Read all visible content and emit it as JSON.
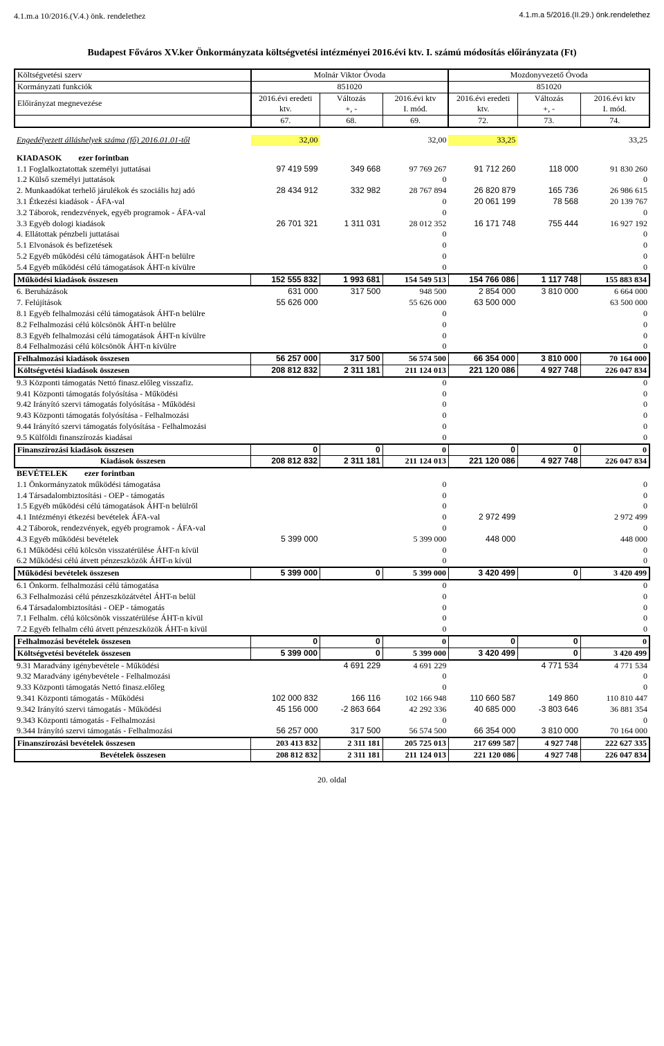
{
  "top_left_ref": "4.1.m.a 10/2016.(V.4.) önk. rendelethez",
  "top_right_ref": "4.1.m.a 5/2016.(II.29.) önk.rendelethez",
  "page_title": "Budapest Főváros XV.ker Önkormányzata költségvetési intézményei  2016.évi ktv. I. számú módosítás előirányzata (Ft)",
  "footer": "20. oldal",
  "header_block": {
    "koltsegvetesi": "Költségvetési szerv",
    "szerv1": "Molnár Viktor Óvoda",
    "szerv2": "Mozdonyvezető Óvoda",
    "korm_funk": "Kormányzati funkciók",
    "eloir_megnev": "Előirányzat megnevezése",
    "code1": "851020",
    "code2": "851020",
    "col_hdrs_left": [
      "2016.évi eredeti ktv.",
      "Változás +, -",
      "2016.évi ktv I. mód."
    ],
    "col_hdrs_right": [
      "2016.évi eredeti ktv.",
      "Változás +, -",
      "2016.évi ktv I. mód."
    ],
    "nums": [
      "67.",
      "68.",
      "69.",
      "72.",
      "73.",
      "74."
    ]
  },
  "allashelyek": {
    "label": "Engedélyezett álláshelyek száma (fő)  2016.01.01-től",
    "v": [
      "32,00",
      "",
      "32,00",
      "33,25",
      "",
      "33,25"
    ]
  },
  "kiadasok_hdr": "KIADASOK",
  "ezer_forint": "ezer forintban",
  "bevetelek_hdr": "BEVÉTELEK",
  "rows_kiadasok": [
    {
      "label": "1.1 Foglalkoztatottak személyi juttatásai",
      "v": [
        "97 419 599",
        "349 668",
        "97 769 267",
        "91 712 260",
        "118 000",
        "91 830 260"
      ],
      "sans_cols": [
        0,
        1,
        3,
        4
      ]
    },
    {
      "label": "1.2 Külső személyi juttatások",
      "v": [
        "",
        "",
        "0",
        "",
        "",
        "0"
      ]
    },
    {
      "label": "2. Munkaadókat terhelő járulékok és szociális hzj adó",
      "v": [
        "28 434 912",
        "332 982",
        "28 767 894",
        "26 820 879",
        "165 736",
        "26 986 615"
      ],
      "sans_cols": [
        0,
        1,
        3,
        4
      ]
    },
    {
      "label": "3.1 Étkezési kiadások - ÁFA-val",
      "v": [
        "",
        "",
        "0",
        "20 061 199",
        "78 568",
        "20 139 767"
      ],
      "sans_cols": [
        3,
        4
      ]
    },
    {
      "label": "3.2 Táborok, rendezvények, egyéb programok - ÁFA-val",
      "v": [
        "",
        "",
        "0",
        "",
        "",
        "0"
      ]
    },
    {
      "label": "3.3 Egyéb dologi kiadások",
      "v": [
        "26 701 321",
        "1 311 031",
        "28 012 352",
        "16 171 748",
        "755 444",
        "16 927 192"
      ],
      "sans_cols": [
        0,
        1,
        3,
        4
      ]
    },
    {
      "label": " 4. Ellátottak pénzbeli juttatásai",
      "v": [
        "",
        "",
        "0",
        "",
        "",
        "0"
      ]
    },
    {
      "label": "5.1 Elvonások és befizetések",
      "v": [
        "",
        "",
        "0",
        "",
        "",
        "0"
      ]
    },
    {
      "label": "5.2 Egyéb működési célú támogatások ÁHT-n belülre",
      "v": [
        "",
        "",
        "0",
        "",
        "",
        "0"
      ]
    },
    {
      "label": "5.4 Egyéb működési célú támogatások ÁHT-n kívülre",
      "v": [
        "",
        "",
        "0",
        "",
        "",
        "0"
      ]
    }
  ],
  "mukodesi_kiadasok": {
    "label": "Működési kiadások összesen",
    "v": [
      "152 555 832",
      "1 993 681",
      "154 549 513",
      "154 766 086",
      "1 117 748",
      "155 883 834"
    ]
  },
  "rows_beruh": [
    {
      "label": " 6. Beruházások",
      "v": [
        "631 000",
        "317 500",
        "948 500",
        "2 854 000",
        "3 810 000",
        "6 664 000"
      ],
      "sans_cols": [
        0,
        1,
        3,
        4
      ]
    },
    {
      "label": " 7. Felújítások",
      "v": [
        "55 626 000",
        "",
        "55 626 000",
        "63 500 000",
        "",
        "63 500 000"
      ],
      "sans_cols": [
        0,
        3
      ]
    },
    {
      "label": "8.1 Egyéb felhalmozási célú támogatások ÁHT-n belülre",
      "v": [
        "",
        "",
        "0",
        "",
        "",
        "0"
      ]
    },
    {
      "label": "8.2 Felhalmozási célú kölcsönök ÁHT-n belülre",
      "v": [
        "",
        "",
        "0",
        "",
        "",
        "0"
      ]
    },
    {
      "label": "8.3 Egyéb felhalmozási célú támogatások ÁHT-n kívülre",
      "v": [
        "",
        "",
        "0",
        "",
        "",
        "0"
      ]
    },
    {
      "label": "8.4 Felhalmozási célú kölcsönök ÁHT-n kívülre",
      "v": [
        "",
        "",
        "0",
        "",
        "",
        "0"
      ]
    }
  ],
  "felhalm_kiadasok": {
    "label": "Felhalmozási kiadások összesen",
    "v": [
      "56 257 000",
      "317 500",
      "56 574 500",
      "66 354 000",
      "3 810 000",
      "70 164 000"
    ]
  },
  "koltsegv_kiadasok": {
    "label": "Költségvetési kiadások összesen",
    "v": [
      "208 812 832",
      "2 311 181",
      "211 124 013",
      "221 120 086",
      "4 927 748",
      "226 047 834"
    ]
  },
  "rows_93": [
    {
      "label": "9.3  Központi támogatás Nettó finasz.előleg visszafiz.",
      "v": [
        "",
        "",
        "0",
        "",
        "",
        "0"
      ]
    },
    {
      "label": "9.41 Központi támogatás folyósítása - Működési",
      "v": [
        "",
        "",
        "0",
        "",
        "",
        "0"
      ]
    },
    {
      "label": "9.42 Irányító szervi támogatás folyósítása - Működési",
      "v": [
        "",
        "",
        "0",
        "",
        "",
        "0"
      ]
    },
    {
      "label": "9.43 Központi támogatás folyósítása - Felhalmozási",
      "v": [
        "",
        "",
        "0",
        "",
        "",
        "0"
      ]
    },
    {
      "label": "9.44 Irányító szervi támogatás folyósítása - Felhalmozási",
      "v": [
        "",
        "",
        "0",
        "",
        "",
        "0"
      ]
    },
    {
      "label": "9.5 Külföldi finanszírozás kiadásai",
      "v": [
        "",
        "",
        "0",
        "",
        "",
        "0"
      ]
    }
  ],
  "finansz_kiadasok": {
    "label": "Finanszírozási kiadások összesen",
    "v": [
      "0",
      "0",
      "0",
      "0",
      "0",
      "0"
    ]
  },
  "kiadasok_ossz": {
    "label": "Kiadások összesen",
    "v": [
      "208 812 832",
      "2 311 181",
      "211 124 013",
      "221 120 086",
      "4 927 748",
      "226 047 834"
    ]
  },
  "rows_bev": [
    {
      "label": "1.1 Önkormányzatok működési támogatása",
      "v": [
        "",
        "",
        "0",
        "",
        "",
        "0"
      ]
    },
    {
      "label": "1.4 Társadalombiztosítási - OEP - támogatás",
      "v": [
        "",
        "",
        "0",
        "",
        "",
        "0"
      ]
    },
    {
      "label": "1.5 Egyéb működési célú támogatások ÁHT-n belülről",
      "v": [
        "",
        "",
        "0",
        "",
        "",
        "0"
      ]
    },
    {
      "label": "4.1 Intézményi étkezési bevételek ÁFA-val",
      "v": [
        "",
        "",
        "0",
        "2 972 499",
        "",
        "2 972 499"
      ],
      "sans_cols": [
        3
      ]
    },
    {
      "label": "4.2 Táborok, rendezvények, egyéb programok - ÁFA-val",
      "v": [
        "",
        "",
        "0",
        "",
        "",
        "0"
      ]
    },
    {
      "label": "4.3 Egyéb működési bevételek",
      "v": [
        "5 399 000",
        "",
        "5 399 000",
        "448 000",
        "",
        "448 000"
      ],
      "sans_cols": [
        0,
        3
      ]
    },
    {
      "label": "6.1 Működési célú kölcsön visszatérülése ÁHT-n kívül",
      "v": [
        "",
        "",
        "0",
        "",
        "",
        "0"
      ]
    },
    {
      "label": "6.2 Működési célú átvett pénzeszközök  ÁHT-n kívül",
      "v": [
        "",
        "",
        "0",
        "",
        "",
        "0"
      ]
    }
  ],
  "mukodesi_bev": {
    "label": "Működési bevételek összesen",
    "v": [
      "5 399 000",
      "0",
      "5 399 000",
      "3 420 499",
      "0",
      "3 420 499"
    ]
  },
  "rows_bev2": [
    {
      "label": "6.1 Önkorm. felhalmozási célú  támogatása",
      "v": [
        "",
        "",
        "0",
        "",
        "",
        "0"
      ]
    },
    {
      "label": "6.3 Felhalmozási célú pénzeszközátvétel ÁHT-n belül",
      "v": [
        "",
        "",
        "0",
        "",
        "",
        "0"
      ]
    },
    {
      "label": "6.4 Társadalombiztosítási - OEP - támogatás",
      "v": [
        "",
        "",
        "0",
        "",
        "",
        "0"
      ]
    },
    {
      "label": "7.1 Felhalm. célú kölcsönök visszatérülése ÁHT-n kívül",
      "v": [
        "",
        "",
        "0",
        "",
        "",
        "0"
      ]
    },
    {
      "label": "7.2 Egyéb felhalm célú átvett pénzeszközök ÁHT-n kívül",
      "v": [
        "",
        "",
        "0",
        "",
        "",
        "0"
      ]
    }
  ],
  "felhalm_bev": {
    "label": "Felhalmozási bevételek összesen",
    "v": [
      "0",
      "0",
      "0",
      "0",
      "0",
      "0"
    ]
  },
  "koltsegv_bev": {
    "label": "Költségvetési bevételek összesen",
    "v": [
      "5 399 000",
      "0",
      "5 399 000",
      "3 420 499",
      "0",
      "3 420 499"
    ]
  },
  "rows_931": [
    {
      "label": "9.31 Maradvány igénybevétele - Működési",
      "v": [
        "",
        "4 691 229",
        "4 691 229",
        "",
        "4 771 534",
        "4 771 534"
      ],
      "sans_cols": [
        1,
        4
      ]
    },
    {
      "label": "9.32  Maradvány igénybevétele - Felhalmozási",
      "v": [
        "",
        "",
        "0",
        "",
        "",
        "0"
      ]
    },
    {
      "label": "9.33  Központi támogatás Nettó finasz.előleg",
      "v": [
        "",
        "",
        "0",
        "",
        "",
        "0"
      ]
    },
    {
      "label": "9.341 Központi támogatás - Működési",
      "v": [
        "102 000 832",
        "166 116",
        "102 166 948",
        "110 660 587",
        "149 860",
        "110 810 447"
      ],
      "sans_cols": [
        0,
        1,
        3,
        4
      ]
    },
    {
      "label": "9.342 Irányító szervi támogatás - Működési",
      "v": [
        "45 156 000",
        "-2 863 664",
        "42 292 336",
        "40 685 000",
        "-3 803 646",
        "36 881 354"
      ],
      "sans_cols": [
        0,
        1,
        3,
        4
      ]
    },
    {
      "label": "9.343 Központi támogatás  - Felhalmozási",
      "v": [
        "",
        "",
        "0",
        "",
        "",
        "0"
      ]
    },
    {
      "label": "9.344 Irányító szervi támogatás - Felhalmozási",
      "v": [
        "56 257 000",
        "317 500",
        "56 574 500",
        "66 354 000",
        "3 810 000",
        "70 164 000"
      ],
      "sans_cols": [
        0,
        1,
        3,
        4
      ]
    }
  ],
  "finansz_bev": {
    "label": "Finanszírozási bevételek összesen",
    "v": [
      "203 413 832",
      "2 311 181",
      "205 725 013",
      "217 699 587",
      "4 927 748",
      "222 627 335"
    ]
  },
  "bev_ossz": {
    "label": "Bevételek összesen",
    "v": [
      "208 812 832",
      "2 311 181",
      "211 124 013",
      "221 120 086",
      "4 927 748",
      "226 047 834"
    ]
  }
}
